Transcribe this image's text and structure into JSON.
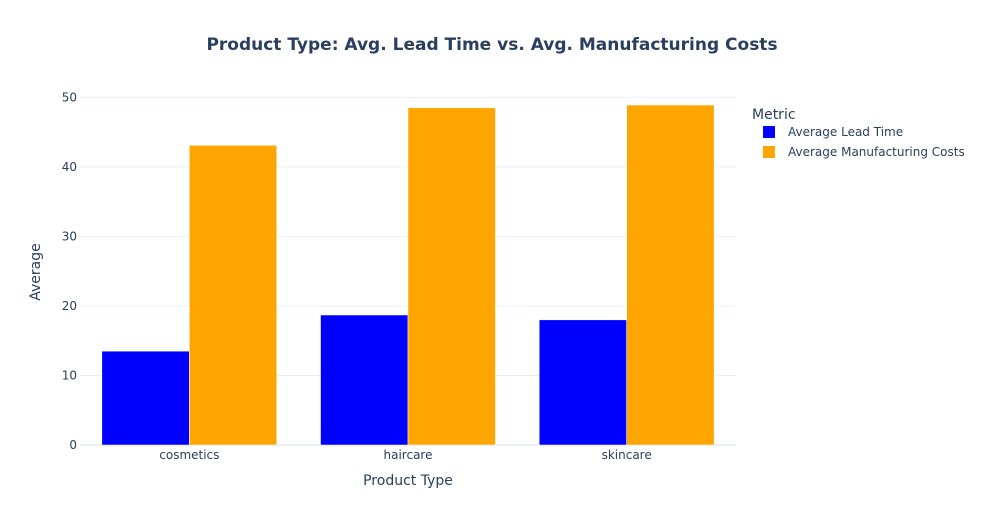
{
  "chart_data": {
    "type": "bar",
    "title": "Product Type: Avg. Lead Time vs. Avg. Manufacturing Costs",
    "xlabel": "Product Type",
    "ylabel": "Average",
    "categories": [
      "cosmetics",
      "haircare",
      "skincare"
    ],
    "series": [
      {
        "name": "Average Lead Time",
        "color": "#0000ff",
        "values": [
          13.5,
          18.7,
          18.0
        ]
      },
      {
        "name": "Average Manufacturing Costs",
        "color": "#ffa500",
        "values": [
          43.1,
          48.5,
          48.9
        ]
      }
    ],
    "ylim": [
      0,
      52.5
    ],
    "yticks": [
      0,
      10,
      20,
      30,
      40,
      50
    ],
    "grid": true,
    "legend": {
      "title": "Metric",
      "placement": "right"
    }
  }
}
